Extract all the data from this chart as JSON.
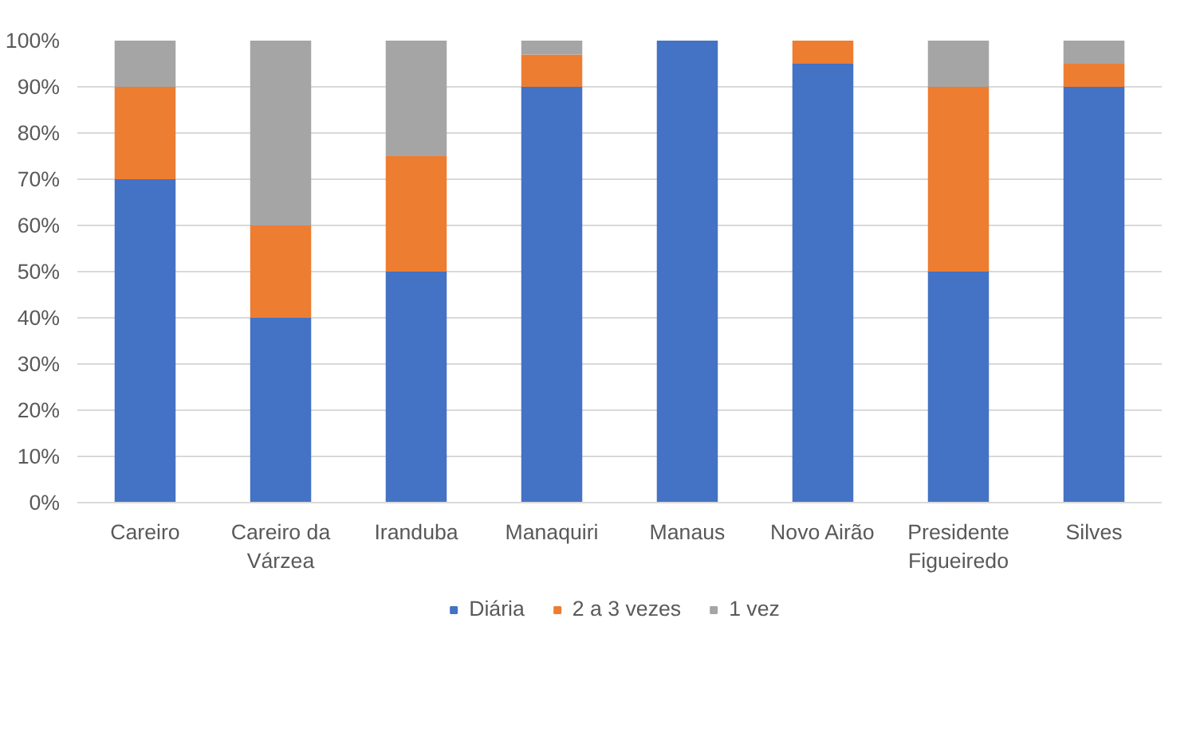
{
  "chart_data": {
    "type": "bar",
    "stacked": true,
    "categories": [
      "Careiro",
      "Careiro da\nVárzea",
      "Iranduba",
      "Manaquiri",
      "Manaus",
      "Novo Airão",
      "Presidente\nFigueiredo",
      "Silves"
    ],
    "series": [
      {
        "name": "Diária",
        "color": "#4472c4",
        "values": [
          70,
          40,
          50,
          90,
          100,
          95,
          50,
          90
        ]
      },
      {
        "name": "2 a 3 vezes",
        "color": "#ed7d31",
        "values": [
          20,
          20,
          25,
          7,
          0,
          5,
          40,
          5
        ]
      },
      {
        "name": "1 vez",
        "color": "#a5a5a5",
        "values": [
          10,
          40,
          25,
          3,
          0,
          0,
          10,
          5
        ]
      }
    ],
    "ylim": [
      0,
      100
    ],
    "yticks": [
      {
        "value": 0,
        "label": "0%"
      },
      {
        "value": 10,
        "label": "10%"
      },
      {
        "value": 20,
        "label": "20%"
      },
      {
        "value": 30,
        "label": "30%"
      },
      {
        "value": 40,
        "label": "40%"
      },
      {
        "value": 50,
        "label": "50%"
      },
      {
        "value": 60,
        "label": "60%"
      },
      {
        "value": 70,
        "label": "70%"
      },
      {
        "value": 80,
        "label": "80%"
      },
      {
        "value": 90,
        "label": "90%"
      },
      {
        "value": 100,
        "label": "100%"
      }
    ],
    "grid": "y",
    "legend": "bottom"
  }
}
